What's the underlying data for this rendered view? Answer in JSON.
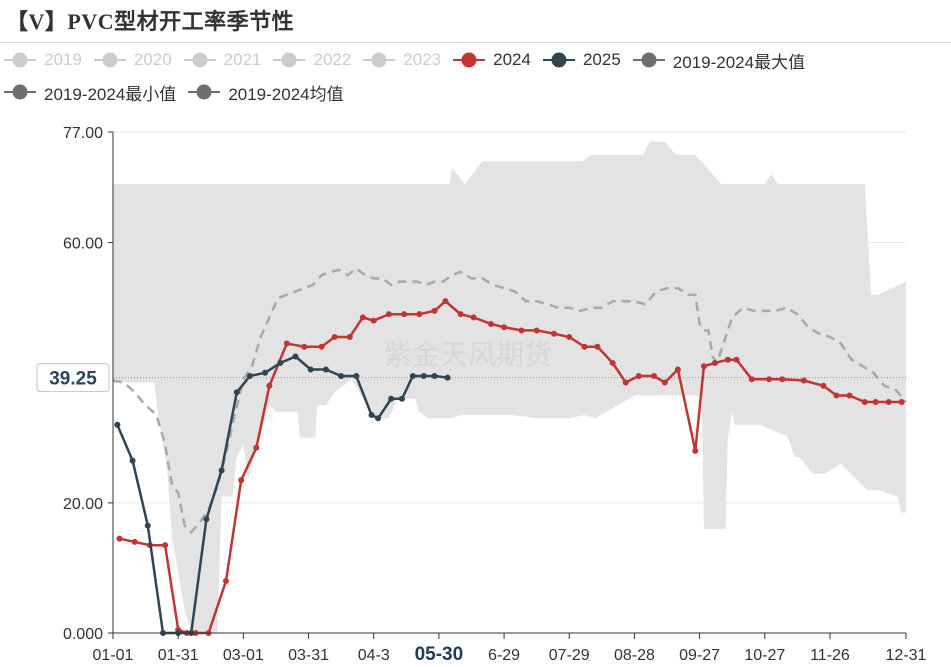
{
  "title": "【V】PVC型材开工率季节性",
  "watermark": "紫金天风期货",
  "legend": [
    {
      "label": "2019",
      "color": "#cccccc",
      "active": false
    },
    {
      "label": "2020",
      "color": "#cccccc",
      "active": false
    },
    {
      "label": "2021",
      "color": "#cccccc",
      "active": false
    },
    {
      "label": "2022",
      "color": "#cccccc",
      "active": false
    },
    {
      "label": "2023",
      "color": "#cccccc",
      "active": false
    },
    {
      "label": "2024",
      "color": "#c23531",
      "active": true
    },
    {
      "label": "2025",
      "color": "#2f4554",
      "active": true
    },
    {
      "label": "2019-2024最大值",
      "color": "#6e6e6e",
      "active": true
    },
    {
      "label": "2019-2024最小值",
      "color": "#6e6e6e",
      "active": true
    },
    {
      "label": "2019-2024均值",
      "color": "#6e6e6e",
      "active": true
    }
  ],
  "chart_data": {
    "type": "line",
    "title": "【V】PVC型材开工率季节性",
    "x_tick_labels": [
      "01-01",
      "01-31",
      "03-01",
      "03-31",
      "04-3",
      "05-30",
      "6-29",
      "07-29",
      "08-28",
      "09-27",
      "10-27",
      "11-26",
      "12-31"
    ],
    "x_tick_days": [
      0,
      30,
      60,
      90,
      120,
      150,
      180,
      210,
      240,
      270,
      300,
      330,
      365
    ],
    "highlight_tick": "05-30",
    "ylim": [
      0,
      77
    ],
    "y_ticks": [
      "0.000",
      "20.00",
      "60.00",
      "77.00"
    ],
    "pointer_value": "39.25",
    "pointer_y": 39.25,
    "band_max": {
      "x": [
        0,
        155,
        156,
        162,
        170,
        180,
        194,
        214,
        216,
        220,
        244,
        247,
        254,
        259,
        268,
        280,
        300,
        303,
        306,
        315,
        346,
        349,
        352,
        365
      ],
      "y": [
        69.0,
        69.0,
        71.5,
        69.0,
        72.5,
        72.5,
        72.5,
        72.5,
        72.5,
        73.5,
        73.5,
        75.5,
        75.5,
        73.5,
        73.5,
        69.0,
        69.0,
        70.5,
        69.0,
        69.0,
        69.0,
        52.0,
        52.0,
        54.0
      ]
    },
    "band_min": {
      "x": [
        0,
        18,
        19,
        21,
        25,
        27,
        33,
        36,
        48,
        50,
        55,
        57,
        60,
        62,
        72,
        75,
        85,
        86,
        93,
        94,
        98,
        102,
        110,
        120,
        127,
        131,
        139,
        141,
        145,
        156,
        160,
        165,
        182,
        183,
        196,
        210,
        217,
        222,
        240,
        250,
        271,
        272,
        282,
        283,
        285,
        286,
        298,
        308,
        310,
        314,
        316,
        322,
        328,
        335,
        347,
        352,
        361,
        363,
        365
      ],
      "y": [
        38.5,
        38.5,
        38.5,
        33.0,
        25.0,
        15.0,
        3.5,
        0.0,
        0.0,
        21.0,
        21.0,
        27.0,
        29.0,
        23.5,
        35.0,
        34.0,
        34.0,
        30.0,
        30.0,
        35.0,
        35.0,
        37.0,
        39.0,
        33.0,
        33.0,
        36.0,
        36.0,
        34.0,
        33.0,
        33.0,
        33.5,
        33.5,
        33.5,
        33.5,
        33.0,
        33.0,
        33.5,
        33.0,
        36.5,
        36.5,
        36.5,
        16.0,
        16.0,
        30.0,
        34.0,
        32.0,
        32.0,
        30.5,
        30.5,
        27.0,
        27.0,
        24.5,
        24.5,
        26.0,
        22.0,
        22.0,
        21.0,
        18.5,
        18.5
      ]
    },
    "series": [
      {
        "name": "2019-2024均值",
        "style": "dashed",
        "color": "#a9a9a9",
        "x": [
          0,
          5,
          10,
          15,
          20,
          24,
          27,
          30,
          33,
          36,
          40,
          44,
          48,
          52,
          56,
          60,
          64,
          68,
          72,
          76,
          80,
          84,
          88,
          92,
          96,
          100,
          104,
          108,
          112,
          116,
          120,
          124,
          128,
          132,
          136,
          140,
          144,
          148,
          152,
          156,
          160,
          165,
          170,
          175,
          180,
          185,
          190,
          195,
          200,
          205,
          210,
          215,
          220,
          225,
          230,
          235,
          240,
          245,
          250,
          255,
          260,
          265,
          268,
          270,
          272,
          274,
          276,
          278,
          281,
          285,
          290,
          295,
          300,
          305,
          310,
          315,
          320,
          325,
          330,
          335,
          340,
          345,
          350,
          355,
          360,
          365
        ],
        "y": [
          38.8,
          38.5,
          37.0,
          35.0,
          33.5,
          29.0,
          23.0,
          21.5,
          16.5,
          15.5,
          17.0,
          19.0,
          22.5,
          27.5,
          33.5,
          39.0,
          41.0,
          45.5,
          48.5,
          51.5,
          52.0,
          52.5,
          53.0,
          53.5,
          55.0,
          55.5,
          55.8,
          55.0,
          56.0,
          55.0,
          54.5,
          54.5,
          53.5,
          54.0,
          54.0,
          54.0,
          53.5,
          54.0,
          54.0,
          55.0,
          55.5,
          54.5,
          54.5,
          53.5,
          53.0,
          52.5,
          51.0,
          51.0,
          50.5,
          50.0,
          50.0,
          49.5,
          50.0,
          50.0,
          51.0,
          51.0,
          51.0,
          50.5,
          52.5,
          53.0,
          53.0,
          52.0,
          52.0,
          47.5,
          46.5,
          46.5,
          42.5,
          41.5,
          44.5,
          48.5,
          50.0,
          49.5,
          49.5,
          49.5,
          50.0,
          49.0,
          47.0,
          46.0,
          45.5,
          44.5,
          42.0,
          41.0,
          40.0,
          38.0,
          37.5,
          35.5
        ]
      },
      {
        "name": "2024",
        "style": "solid",
        "color": "#c23531",
        "x": [
          3,
          10,
          17,
          24,
          30,
          34,
          38,
          44,
          52,
          59,
          66,
          72,
          80,
          88,
          96,
          102,
          109,
          115,
          120,
          127,
          134,
          141,
          148,
          153,
          160,
          166,
          174,
          180,
          188,
          195,
          203,
          210,
          217,
          223,
          230,
          236,
          242,
          249,
          254,
          260,
          268,
          272,
          277,
          283,
          287,
          294,
          302,
          308,
          318,
          327,
          333,
          339,
          346,
          351,
          357,
          363
        ],
        "y": [
          14.5,
          14.0,
          13.5,
          13.5,
          0.5,
          0.0,
          0.0,
          0.0,
          8.0,
          23.5,
          28.5,
          38.0,
          44.5,
          44.0,
          44.0,
          45.5,
          45.5,
          48.5,
          48.0,
          49.0,
          49.0,
          49.0,
          49.5,
          51.0,
          49.0,
          48.5,
          47.5,
          47.0,
          46.5,
          46.5,
          46.0,
          45.5,
          44.0,
          44.0,
          41.5,
          38.5,
          39.5,
          39.5,
          38.5,
          40.5,
          28.0,
          41.0,
          41.5,
          42.0,
          42.0,
          39.0,
          39.0,
          39.0,
          38.8,
          38.0,
          36.5,
          36.5,
          35.5,
          35.5,
          35.5,
          35.5
        ]
      },
      {
        "name": "2025",
        "style": "solid",
        "color": "#2f4554",
        "x": [
          2,
          9,
          16,
          23,
          30,
          36,
          43,
          50,
          57,
          63,
          70,
          77,
          84,
          91,
          98,
          105,
          112,
          119,
          122,
          128,
          133,
          138,
          143,
          148,
          154
        ],
        "y": [
          32.0,
          26.5,
          16.5,
          0.0,
          0.0,
          0.0,
          17.5,
          25.0,
          37.0,
          39.5,
          40.0,
          41.5,
          42.5,
          40.5,
          40.5,
          39.5,
          39.5,
          33.5,
          33.0,
          36.0,
          36.0,
          39.5,
          39.5,
          39.5,
          39.25
        ]
      }
    ]
  }
}
